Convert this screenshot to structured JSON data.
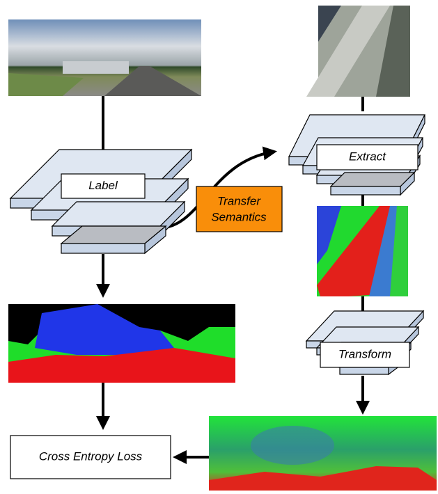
{
  "nodes": [
    {
      "label": "Label"
    },
    {
      "label": [
        "Transfer",
        "Semantics"
      ]
    },
    {
      "label": "Extract"
    },
    {
      "label": "Transform"
    },
    {
      "label": "Cross Entropy Loss"
    }
  ]
}
